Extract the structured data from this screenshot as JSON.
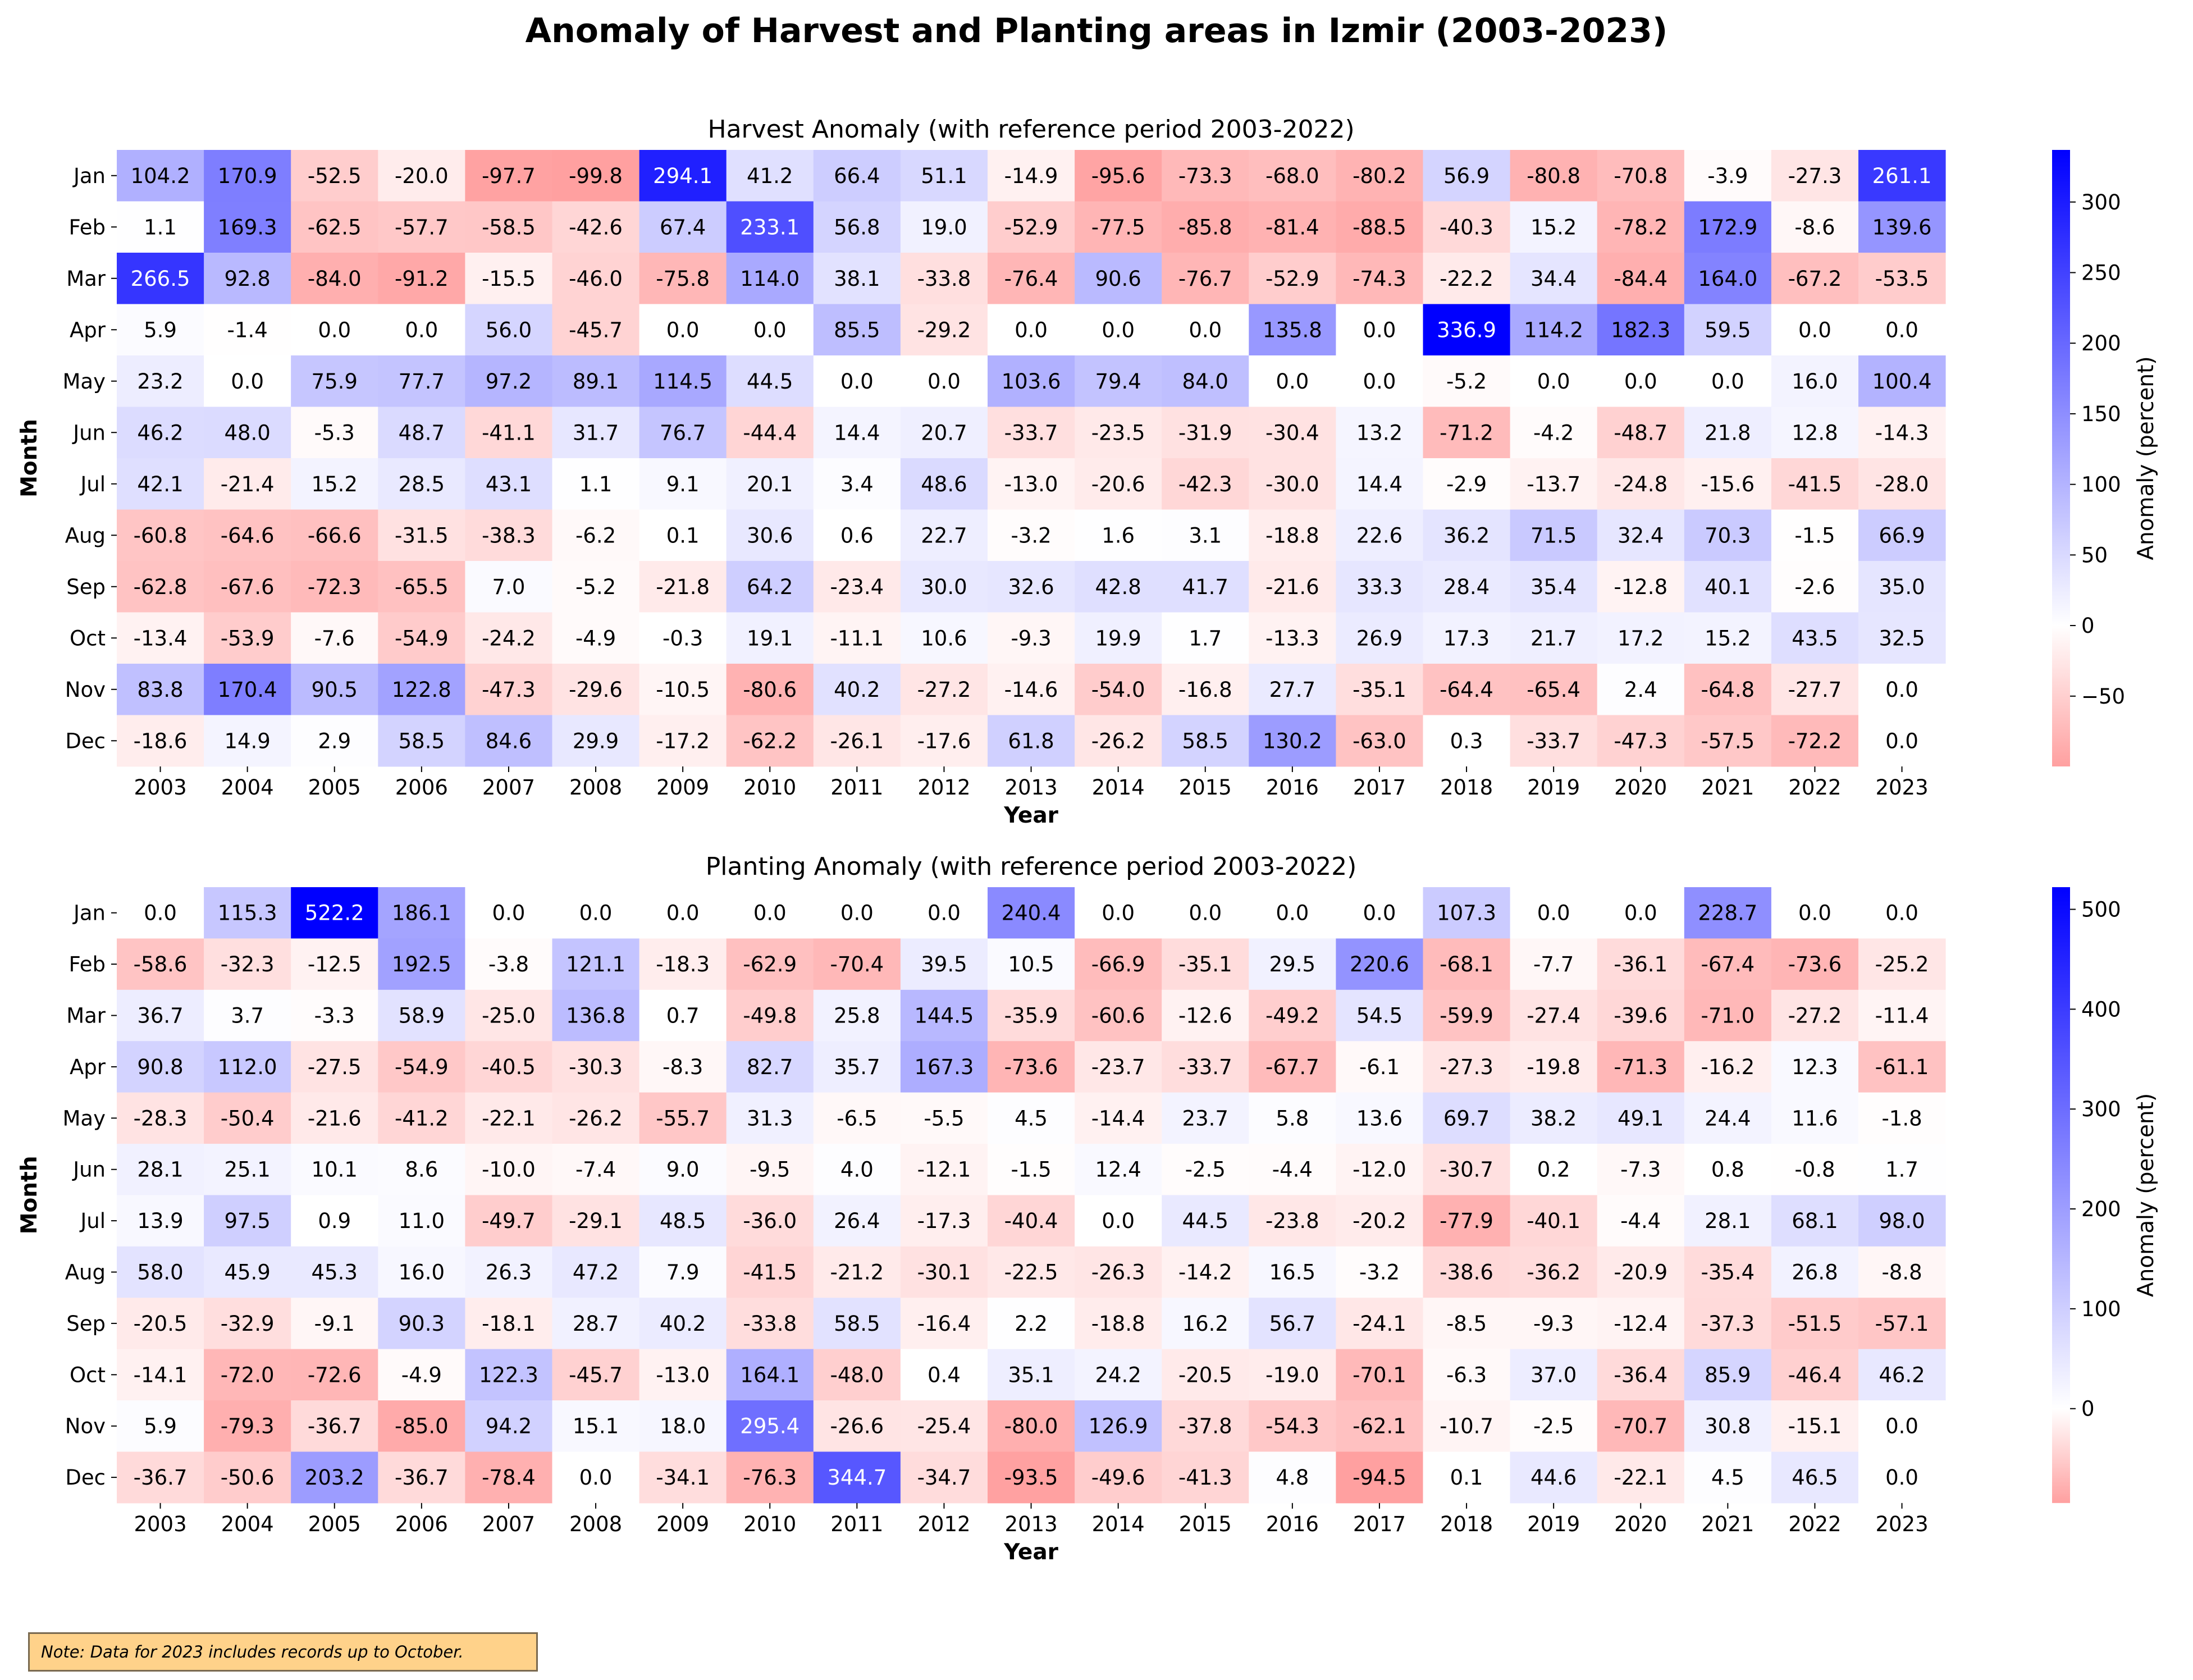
{
  "title": "Anomaly of Harvest and Planting areas in Izmir (2003-2023)",
  "note": "Note: Data for 2023 includes records up to October.",
  "chart_data": [
    {
      "type": "heatmap",
      "title": "Harvest Anomaly (with reference period 2003-2022)",
      "xlabel": "Year",
      "ylabel": "Month",
      "colorbar_label": "Anomaly (percent)",
      "colorbar_ticks": [
        -50,
        0,
        50,
        100,
        150,
        200,
        250,
        300
      ],
      "vmin": -99.8,
      "vmax": 336.9,
      "colormap": "bwr_r (red negative, white zero, blue positive)",
      "years": [
        "2003",
        "2004",
        "2005",
        "2006",
        "2007",
        "2008",
        "2009",
        "2010",
        "2011",
        "2012",
        "2013",
        "2014",
        "2015",
        "2016",
        "2017",
        "2018",
        "2019",
        "2020",
        "2021",
        "2022",
        "2023"
      ],
      "months": [
        "Jan",
        "Feb",
        "Mar",
        "Apr",
        "May",
        "Jun",
        "Jul",
        "Aug",
        "Sep",
        "Oct",
        "Nov",
        "Dec"
      ],
      "values": [
        [
          104.2,
          170.9,
          -52.5,
          -20.0,
          -97.7,
          -99.8,
          294.1,
          41.2,
          66.4,
          51.1,
          -14.9,
          -95.6,
          -73.3,
          -68.0,
          -80.2,
          56.9,
          -80.8,
          -70.8,
          -3.9,
          -27.3,
          261.1
        ],
        [
          1.1,
          169.3,
          -62.5,
          -57.7,
          -58.5,
          -42.6,
          67.4,
          233.1,
          56.8,
          19.0,
          -52.9,
          -77.5,
          -85.8,
          -81.4,
          -88.5,
          -40.3,
          15.2,
          -78.2,
          172.9,
          -8.6,
          139.6
        ],
        [
          266.5,
          92.8,
          -84.0,
          -91.2,
          -15.5,
          -46.0,
          -75.8,
          114.0,
          38.1,
          -33.8,
          -76.4,
          90.6,
          -76.7,
          -52.9,
          -74.3,
          -22.2,
          34.4,
          -84.4,
          164.0,
          -67.2,
          -53.5
        ],
        [
          5.9,
          -1.4,
          0.0,
          0.0,
          56.0,
          -45.7,
          0.0,
          0.0,
          85.5,
          -29.2,
          0.0,
          0.0,
          0.0,
          135.8,
          0.0,
          336.9,
          114.2,
          182.3,
          59.5,
          0.0,
          0.0
        ],
        [
          23.2,
          0.0,
          75.9,
          77.7,
          97.2,
          89.1,
          114.5,
          44.5,
          0.0,
          0.0,
          103.6,
          79.4,
          84.0,
          0.0,
          0.0,
          -5.2,
          0.0,
          0.0,
          0.0,
          16.0,
          100.4
        ],
        [
          46.2,
          48.0,
          -5.3,
          48.7,
          -41.1,
          31.7,
          76.7,
          -44.4,
          14.4,
          20.7,
          -33.7,
          -23.5,
          -31.9,
          -30.4,
          13.2,
          -71.2,
          -4.2,
          -48.7,
          21.8,
          12.8,
          -14.3
        ],
        [
          42.1,
          -21.4,
          15.2,
          28.5,
          43.1,
          1.1,
          9.1,
          20.1,
          3.4,
          48.6,
          -13.0,
          -20.6,
          -42.3,
          -30.0,
          14.4,
          -2.9,
          -13.7,
          -24.8,
          -15.6,
          -41.5,
          -28.0
        ],
        [
          -60.8,
          -64.6,
          -66.6,
          -31.5,
          -38.3,
          -6.2,
          0.1,
          30.6,
          0.6,
          22.7,
          -3.2,
          1.6,
          3.1,
          -18.8,
          22.6,
          36.2,
          71.5,
          32.4,
          70.3,
          -1.5,
          66.9
        ],
        [
          -62.8,
          -67.6,
          -72.3,
          -65.5,
          7.0,
          -5.2,
          -21.8,
          64.2,
          -23.4,
          30.0,
          32.6,
          42.8,
          41.7,
          -21.6,
          33.3,
          28.4,
          35.4,
          -12.8,
          40.1,
          -2.6,
          35.0
        ],
        [
          -13.4,
          -53.9,
          -7.6,
          -54.9,
          -24.2,
          -4.9,
          -0.3,
          19.1,
          -11.1,
          10.6,
          -9.3,
          19.9,
          1.7,
          -13.3,
          26.9,
          17.3,
          21.7,
          17.2,
          15.2,
          43.5,
          32.5
        ],
        [
          83.8,
          170.4,
          90.5,
          122.8,
          -47.3,
          -29.6,
          -10.5,
          -80.6,
          40.2,
          -27.2,
          -14.6,
          -54.0,
          -16.8,
          27.7,
          -35.1,
          -64.4,
          -65.4,
          2.4,
          -64.8,
          -27.7,
          0.0
        ],
        [
          -18.6,
          14.9,
          2.9,
          58.5,
          84.6,
          29.9,
          -17.2,
          -62.2,
          -26.1,
          -17.6,
          61.8,
          -26.2,
          58.5,
          130.2,
          -63.0,
          0.3,
          -33.7,
          -47.3,
          -57.5,
          -72.2,
          0.0
        ]
      ]
    },
    {
      "type": "heatmap",
      "title": "Planting Anomaly (with reference period 2003-2022)",
      "xlabel": "Year",
      "ylabel": "Month",
      "colorbar_label": "Anomaly (percent)",
      "colorbar_ticks": [
        0,
        100,
        200,
        300,
        400,
        500
      ],
      "vmin": -94.5,
      "vmax": 522.2,
      "colormap": "bwr_r (red negative, white zero, blue positive)",
      "years": [
        "2003",
        "2004",
        "2005",
        "2006",
        "2007",
        "2008",
        "2009",
        "2010",
        "2011",
        "2012",
        "2013",
        "2014",
        "2015",
        "2016",
        "2017",
        "2018",
        "2019",
        "2020",
        "2021",
        "2022",
        "2023"
      ],
      "months": [
        "Jan",
        "Feb",
        "Mar",
        "Apr",
        "May",
        "Jun",
        "Jul",
        "Aug",
        "Sep",
        "Oct",
        "Nov",
        "Dec"
      ],
      "values": [
        [
          0.0,
          115.3,
          522.2,
          186.1,
          0.0,
          0.0,
          0.0,
          0.0,
          0.0,
          0.0,
          240.4,
          0.0,
          0.0,
          0.0,
          0.0,
          107.3,
          0.0,
          0.0,
          228.7,
          0.0,
          0.0
        ],
        [
          -58.6,
          -32.3,
          -12.5,
          192.5,
          -3.8,
          121.1,
          -18.3,
          -62.9,
          -70.4,
          39.5,
          10.5,
          -66.9,
          -35.1,
          29.5,
          220.6,
          -68.1,
          -7.7,
          -36.1,
          -67.4,
          -73.6,
          -25.2
        ],
        [
          36.7,
          3.7,
          -3.3,
          58.9,
          -25.0,
          136.8,
          0.7,
          -49.8,
          25.8,
          144.5,
          -35.9,
          -60.6,
          -12.6,
          -49.2,
          54.5,
          -59.9,
          -27.4,
          -39.6,
          -71.0,
          -27.2,
          -11.4
        ],
        [
          90.8,
          112.0,
          -27.5,
          -54.9,
          -40.5,
          -30.3,
          -8.3,
          82.7,
          35.7,
          167.3,
          -73.6,
          -23.7,
          -33.7,
          -67.7,
          -6.1,
          -27.3,
          -19.8,
          -71.3,
          -16.2,
          12.3,
          -61.1
        ],
        [
          -28.3,
          -50.4,
          -21.6,
          -41.2,
          -22.1,
          -26.2,
          -55.7,
          31.3,
          -6.5,
          -5.5,
          4.5,
          -14.4,
          23.7,
          5.8,
          13.6,
          69.7,
          38.2,
          49.1,
          24.4,
          11.6,
          -1.8
        ],
        [
          28.1,
          25.1,
          10.1,
          8.6,
          -10.0,
          -7.4,
          9.0,
          -9.5,
          4.0,
          -12.1,
          -1.5,
          12.4,
          -2.5,
          -4.4,
          -12.0,
          -30.7,
          0.2,
          -7.3,
          0.8,
          -0.8,
          1.7
        ],
        [
          13.9,
          97.5,
          0.9,
          11.0,
          -49.7,
          -29.1,
          48.5,
          -36.0,
          26.4,
          -17.3,
          -40.4,
          0.0,
          44.5,
          -23.8,
          -20.2,
          -77.9,
          -40.1,
          -4.4,
          28.1,
          68.1,
          98.0
        ],
        [
          58.0,
          45.9,
          45.3,
          16.0,
          26.3,
          47.2,
          7.9,
          -41.5,
          -21.2,
          -30.1,
          -22.5,
          -26.3,
          -14.2,
          16.5,
          -3.2,
          -38.6,
          -36.2,
          -20.9,
          -35.4,
          26.8,
          -8.8
        ],
        [
          -20.5,
          -32.9,
          -9.1,
          90.3,
          -18.1,
          28.7,
          40.2,
          -33.8,
          58.5,
          -16.4,
          2.2,
          -18.8,
          16.2,
          56.7,
          -24.1,
          -8.5,
          -9.3,
          -12.4,
          -37.3,
          -51.5,
          -57.1
        ],
        [
          -14.1,
          -72.0,
          -72.6,
          -4.9,
          122.3,
          -45.7,
          -13.0,
          164.1,
          -48.0,
          0.4,
          35.1,
          24.2,
          -20.5,
          -19.0,
          -70.1,
          -6.3,
          37.0,
          -36.4,
          85.9,
          -46.4,
          46.2
        ],
        [
          5.9,
          -79.3,
          -36.7,
          -85.0,
          94.2,
          15.1,
          18.0,
          295.4,
          -26.6,
          -25.4,
          -80.0,
          126.9,
          -37.8,
          -54.3,
          -62.1,
          -10.7,
          -2.5,
          -70.7,
          30.8,
          -15.1,
          0.0
        ],
        [
          -36.7,
          -50.6,
          203.2,
          -36.7,
          -78.4,
          0.0,
          -34.1,
          -76.3,
          344.7,
          -34.7,
          -93.5,
          -49.6,
          -41.3,
          4.8,
          -94.5,
          0.1,
          44.6,
          -22.1,
          4.5,
          46.5,
          0.0
        ]
      ]
    }
  ]
}
